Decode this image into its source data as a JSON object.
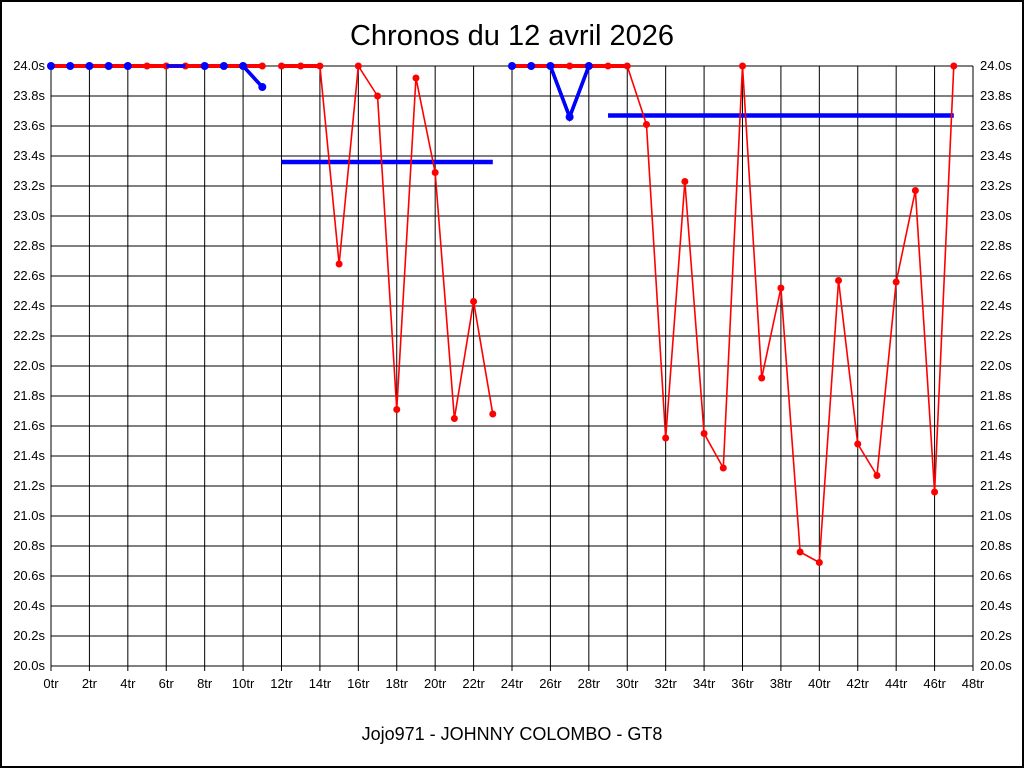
{
  "chart_data": {
    "type": "line",
    "title": "Chronos du 12 avril 2026",
    "footer": "Jojo971 - JOHNNY COLOMBO - GT8",
    "xlim": [
      0,
      48
    ],
    "ylim": [
      20.0,
      24.0
    ],
    "grid": true,
    "legend": "none",
    "x_ticks": [
      "0tr",
      "2tr",
      "4tr",
      "6tr",
      "8tr",
      "10tr",
      "12tr",
      "14tr",
      "16tr",
      "18tr",
      "20tr",
      "22tr",
      "24tr",
      "26tr",
      "28tr",
      "30tr",
      "32tr",
      "34tr",
      "36tr",
      "38tr",
      "40tr",
      "42tr",
      "44tr",
      "46tr",
      "48tr"
    ],
    "y_ticks": [
      "24.0s",
      "23.8s",
      "23.6s",
      "23.4s",
      "23.2s",
      "23.0s",
      "22.8s",
      "22.6s",
      "22.4s",
      "22.2s",
      "22.0s",
      "21.8s",
      "21.6s",
      "21.4s",
      "21.2s",
      "21.0s",
      "20.8s",
      "20.6s",
      "20.4s",
      "20.2s",
      "20.0s"
    ],
    "colors": {
      "lap_series": "#ff0000",
      "reference_series": "#0000ff",
      "grid": "#000000",
      "background": "#ffffff",
      "text": "#000000"
    },
    "red_series": {
      "name": "lap-times",
      "runs": [
        [
          [
            0,
            24.0
          ],
          [
            1,
            24.0
          ],
          [
            2,
            24.0
          ],
          [
            3,
            24.0
          ],
          [
            4,
            24.0
          ],
          [
            5,
            24.0
          ],
          [
            6,
            24.0
          ],
          [
            7,
            24.0
          ],
          [
            8,
            24.0
          ],
          [
            9,
            24.0
          ],
          [
            10,
            24.0
          ],
          [
            11,
            24.0
          ]
        ],
        [
          [
            12,
            24.0
          ],
          [
            13,
            24.0
          ],
          [
            14,
            24.0
          ],
          [
            15,
            22.68
          ],
          [
            16,
            24.0
          ],
          [
            17,
            23.8
          ],
          [
            18,
            21.71
          ],
          [
            19,
            23.92
          ],
          [
            20,
            23.29
          ],
          [
            21,
            21.65
          ],
          [
            22,
            22.43
          ],
          [
            23,
            21.68
          ]
        ],
        [
          [
            24,
            24.0
          ],
          [
            25,
            24.0
          ],
          [
            26,
            24.0
          ],
          [
            27,
            24.0
          ],
          [
            28,
            24.0
          ],
          [
            29,
            24.0
          ],
          [
            30,
            24.0
          ],
          [
            31,
            23.61
          ],
          [
            32,
            21.52
          ],
          [
            33,
            23.23
          ],
          [
            34,
            21.55
          ],
          [
            35,
            21.32
          ],
          [
            36,
            24.0
          ],
          [
            37,
            21.92
          ],
          [
            38,
            22.52
          ],
          [
            39,
            20.76
          ],
          [
            40,
            20.69
          ],
          [
            41,
            22.57
          ],
          [
            42,
            21.48
          ],
          [
            43,
            21.27
          ],
          [
            44,
            22.56
          ],
          [
            45,
            23.17
          ],
          [
            46,
            21.16
          ],
          [
            47,
            24.0
          ]
        ]
      ]
    },
    "blue_series": {
      "name": "reference-times",
      "under_segments": [
        {
          "kind": "polyline",
          "points": [
            [
              0,
              24.0
            ],
            [
              1,
              24.0
            ],
            [
              2,
              24.0
            ],
            [
              3,
              24.0
            ],
            [
              4,
              24.0
            ],
            [
              5,
              24.0
            ],
            [
              6,
              24.0
            ],
            [
              7,
              24.0
            ],
            [
              8,
              24.0
            ],
            [
              9,
              24.0
            ],
            [
              10,
              24.0
            ],
            [
              11,
              23.86
            ]
          ]
        },
        {
          "kind": "hline",
          "from": 12,
          "to": 23,
          "value": 23.36
        },
        {
          "kind": "polyline",
          "points": [
            [
              24,
              24.0
            ],
            [
              25,
              24.0
            ],
            [
              26,
              24.0
            ],
            [
              27,
              23.66
            ],
            [
              28,
              24.0
            ]
          ]
        },
        {
          "kind": "hline",
          "from": 29,
          "to": 47,
          "value": 23.67
        }
      ],
      "over_segments": [
        {
          "kind": "polyline",
          "points": [
            [
              6,
              24.0
            ],
            [
              7,
              24.0
            ]
          ]
        },
        {
          "kind": "polyline",
          "points": [
            [
              10,
              24.0
            ],
            [
              11,
              23.86
            ]
          ]
        },
        {
          "kind": "polyline",
          "points": [
            [
              26,
              24.0
            ],
            [
              27,
              23.66
            ],
            [
              28,
              24.0
            ]
          ]
        }
      ],
      "markers": [
        [
          0,
          24.0
        ],
        [
          1,
          24.0
        ],
        [
          2,
          24.0
        ],
        [
          3,
          24.0
        ],
        [
          4,
          24.0
        ],
        [
          8,
          24.0
        ],
        [
          9,
          24.0
        ],
        [
          10,
          24.0
        ],
        [
          11,
          23.86
        ],
        [
          24,
          24.0
        ],
        [
          25,
          24.0
        ],
        [
          26,
          24.0
        ],
        [
          27,
          23.66
        ],
        [
          28,
          24.0
        ]
      ]
    }
  }
}
